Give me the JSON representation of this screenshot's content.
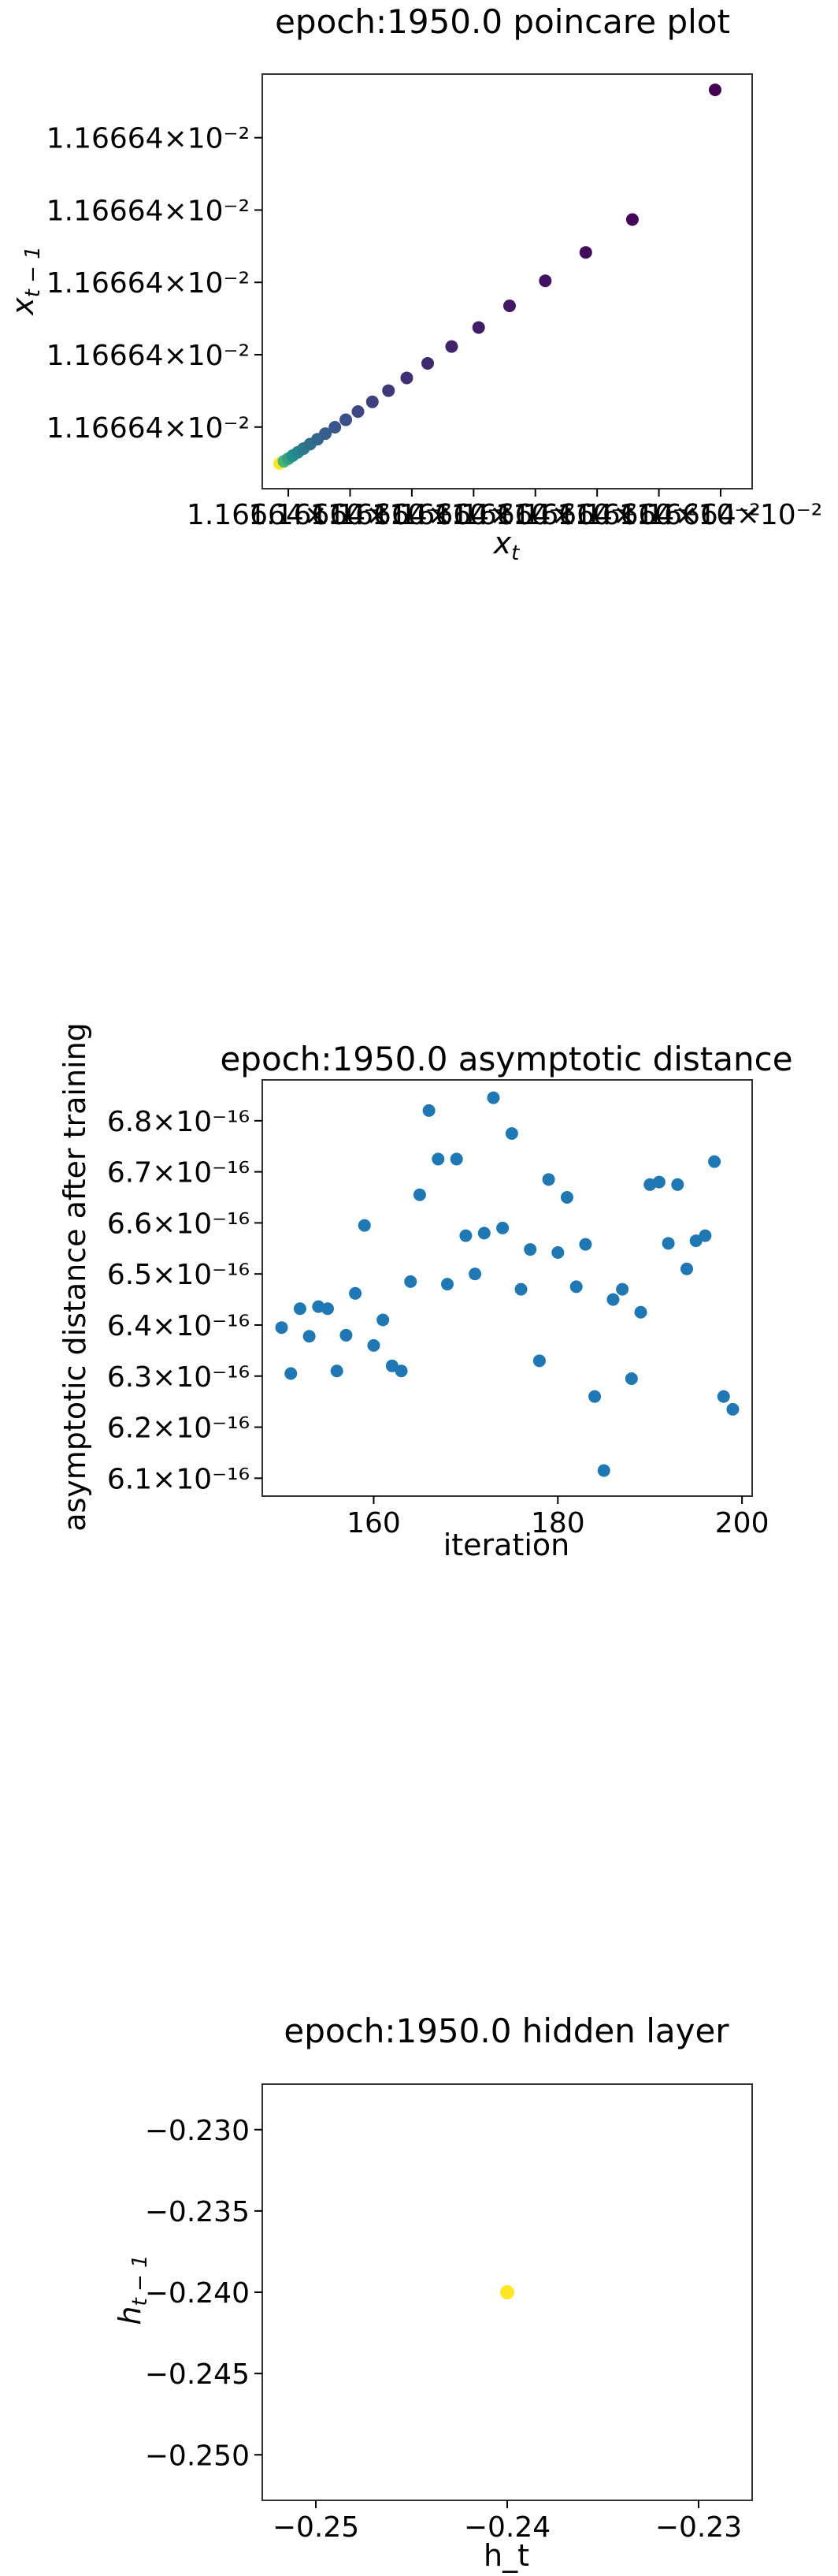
{
  "charts": [
    {
      "type": "scatter",
      "title": "epoch:1950.0 poincare plot",
      "xlabel": "x_t",
      "ylabel": "x_{t-1}",
      "colormap": [
        "#fde725",
        "#5ec962",
        "#21918c",
        "#3b528b",
        "#440154"
      ],
      "x_tick_labels_overlapping": [
        "1.16664×10⁻²",
        "1.16664×10⁻²",
        "1.16664×10⁻²",
        "1.16664×10⁻²",
        "1.16664×10⁻²",
        "1.16664×10⁻²",
        "1.16664×10⁻²",
        "1.16664×10⁻²"
      ],
      "y_tick_labels": [
        "1.16664×10⁻²",
        "1.16664×10⁻²",
        "1.16664×10⁻²",
        "1.16664×10⁻²",
        "1.16664×10⁻²"
      ],
      "x_ticks": [
        0.02,
        0.14,
        0.26,
        0.38,
        0.5,
        0.62,
        0.74,
        0.86
      ],
      "y_ticks": [
        0.06,
        0.27,
        0.48,
        0.69,
        0.9
      ],
      "points": [
        [
          0.0,
          0.0
        ],
        [
          0.01,
          0.006
        ],
        [
          0.02,
          0.013
        ],
        [
          0.03,
          0.021
        ],
        [
          0.042,
          0.03
        ],
        [
          0.055,
          0.04
        ],
        [
          0.07,
          0.052
        ],
        [
          0.087,
          0.065
        ],
        [
          0.105,
          0.08
        ],
        [
          0.127,
          0.097
        ],
        [
          0.152,
          0.117
        ],
        [
          0.18,
          0.139
        ],
        [
          0.213,
          0.165
        ],
        [
          0.25,
          0.195
        ],
        [
          0.292,
          0.229
        ],
        [
          0.34,
          0.268
        ],
        [
          0.395,
          0.313
        ],
        [
          0.457,
          0.364
        ],
        [
          0.528,
          0.422
        ],
        [
          0.61,
          0.489
        ],
        [
          0.703,
          0.565
        ],
        [
          0.81,
          0.653
        ],
        [
          1.0,
          1.0
        ]
      ]
    },
    {
      "type": "scatter",
      "title": "epoch:1950.0 asymptotic distance",
      "xlabel": "iteration",
      "ylabel": "asymptotic distance after training",
      "color": "#1f77b4",
      "xlim": [
        147.9,
        201.1
      ],
      "ylim": [
        6.065,
        6.88
      ],
      "x_ticks": [
        160,
        180,
        200
      ],
      "y_ticks": [
        {
          "value": 6.1,
          "label": "6.1×10⁻¹⁶"
        },
        {
          "value": 6.2,
          "label": "6.2×10⁻¹⁶"
        },
        {
          "value": 6.3,
          "label": "6.3×10⁻¹⁶"
        },
        {
          "value": 6.4,
          "label": "6.4×10⁻¹⁶"
        },
        {
          "value": 6.5,
          "label": "6.5×10⁻¹⁶"
        },
        {
          "value": 6.6,
          "label": "6.6×10⁻¹⁶"
        },
        {
          "value": 6.7,
          "label": "6.7×10⁻¹⁶"
        },
        {
          "value": 6.8,
          "label": "6.8×10⁻¹⁶"
        }
      ],
      "points": [
        [
          150,
          6.395
        ],
        [
          151,
          6.305
        ],
        [
          152,
          6.432
        ],
        [
          153,
          6.378
        ],
        [
          154,
          6.436
        ],
        [
          155,
          6.432
        ],
        [
          156,
          6.31
        ],
        [
          157,
          6.38
        ],
        [
          158,
          6.462
        ],
        [
          159,
          6.595
        ],
        [
          160,
          6.36
        ],
        [
          161,
          6.41
        ],
        [
          162,
          6.32
        ],
        [
          163,
          6.31
        ],
        [
          164,
          6.485
        ],
        [
          165,
          6.655
        ],
        [
          166,
          6.82
        ],
        [
          167,
          6.725
        ],
        [
          168,
          6.48
        ],
        [
          169,
          6.725
        ],
        [
          170,
          6.575
        ],
        [
          171,
          6.5
        ],
        [
          172,
          6.58
        ],
        [
          173,
          6.845
        ],
        [
          174,
          6.59
        ],
        [
          175,
          6.775
        ],
        [
          176,
          6.47
        ],
        [
          177,
          6.548
        ],
        [
          178,
          6.33
        ],
        [
          179,
          6.685
        ],
        [
          180,
          6.542
        ],
        [
          181,
          6.65
        ],
        [
          182,
          6.475
        ],
        [
          183,
          6.558
        ],
        [
          184,
          6.26
        ],
        [
          185,
          6.115
        ],
        [
          186,
          6.45
        ],
        [
          187,
          6.47
        ],
        [
          188,
          6.295
        ],
        [
          189,
          6.425
        ],
        [
          190,
          6.675
        ],
        [
          191,
          6.68
        ],
        [
          192,
          6.56
        ],
        [
          193,
          6.675
        ],
        [
          194,
          6.51
        ],
        [
          195,
          6.565
        ],
        [
          196,
          6.575
        ],
        [
          197,
          6.72
        ],
        [
          198,
          6.26
        ],
        [
          199,
          6.235
        ]
      ]
    },
    {
      "type": "scatter",
      "title": "epoch:1950.0 hidden layer",
      "xlabel": "h_t",
      "ylabel": "h_{t-1}",
      "color": "#fde725",
      "xlim": [
        -0.2528,
        -0.2272
      ],
      "ylim": [
        -0.2528,
        -0.2272
      ],
      "x_ticks": [
        {
          "value": -0.25,
          "label": "−0.25"
        },
        {
          "value": -0.24,
          "label": "−0.24"
        },
        {
          "value": -0.23,
          "label": "−0.23"
        }
      ],
      "y_ticks": [
        {
          "value": -0.23,
          "label": "−0.230"
        },
        {
          "value": -0.235,
          "label": "−0.235"
        },
        {
          "value": -0.24,
          "label": "−0.240"
        },
        {
          "value": -0.245,
          "label": "−0.245"
        },
        {
          "value": -0.25,
          "label": "−0.250"
        }
      ],
      "points": [
        [
          -0.24,
          -0.24
        ]
      ]
    }
  ]
}
